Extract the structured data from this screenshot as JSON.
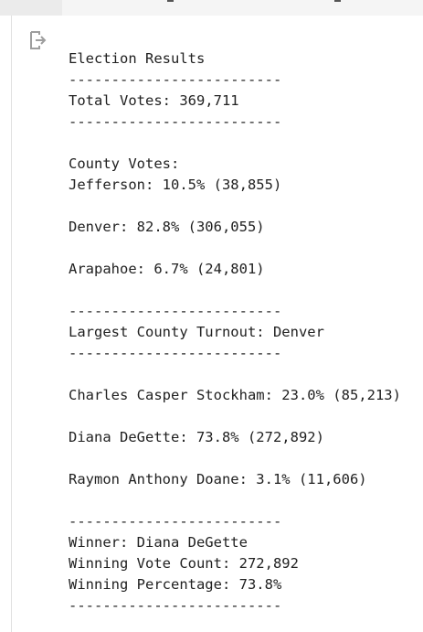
{
  "output": {
    "lines": [
      "Election Results",
      "-------------------------",
      "Total Votes: 369,711",
      "-------------------------",
      "",
      "County Votes:",
      "Jefferson: 10.5% (38,855)",
      "",
      "Denver: 82.8% (306,055)",
      "",
      "Arapahoe: 6.7% (24,801)",
      "",
      "-------------------------",
      "Largest County Turnout: Denver",
      "-------------------------",
      "",
      "Charles Casper Stockham: 23.0% (85,213)",
      "",
      "Diana DeGette: 73.8% (272,892)",
      "",
      "Raymon Anthony Doane: 3.1% (11,606)",
      "",
      "-------------------------",
      "Winner: Diana DeGette",
      "Winning Vote Count: 272,892",
      "Winning Percentage: 73.8%",
      "-------------------------"
    ]
  },
  "icons": {
    "output": "output-redirect-icon"
  },
  "colors": {
    "text": "#212121",
    "icon": "#9e9e9e",
    "topbar": "#f5f5f5",
    "rule": "#e0e0e0"
  }
}
